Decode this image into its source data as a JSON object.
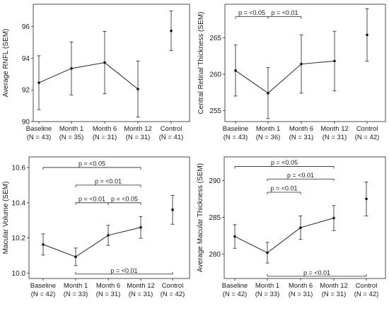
{
  "chart_data": [
    {
      "id": "rnfl",
      "type": "line",
      "ylabel": "Average RNFL (SEM)",
      "ylim": [
        90,
        97.4
      ],
      "yticks": [
        90,
        92,
        94,
        96
      ],
      "categories": [
        {
          "name": "Baseline",
          "n": "(N = 43)"
        },
        {
          "name": "Month 1",
          "n": "(N = 35)"
        },
        {
          "name": "Month 6",
          "n": "(N = 31)"
        },
        {
          "name": "Month 12",
          "n": "(N = 31)"
        },
        {
          "name": "Control",
          "n": "(N = 41)"
        }
      ],
      "values": [
        92.45,
        93.35,
        93.72,
        92.05,
        95.72
      ],
      "sem": [
        1.7,
        1.67,
        1.97,
        1.77,
        1.25
      ],
      "connect": [
        0,
        1,
        2,
        3
      ],
      "significance": [],
      "grid": false
    },
    {
      "id": "central-thickness",
      "type": "line",
      "ylabel": "Central Retinal Thickness (SEM)",
      "ylim": [
        253.5,
        269.6
      ],
      "yticks": [
        255,
        260,
        265
      ],
      "categories": [
        {
          "name": "Baseline",
          "n": "(N = 43)"
        },
        {
          "name": "Month 1",
          "n": "(N = 36)"
        },
        {
          "name": "Month 6",
          "n": "(N = 31)"
        },
        {
          "name": "Month 12",
          "n": "(N = 31)"
        },
        {
          "name": "Control",
          "n": "(N = 42)"
        }
      ],
      "values": [
        260.5,
        257.4,
        261.4,
        261.8,
        265.4
      ],
      "sem": [
        3.5,
        3.5,
        4.0,
        4.1,
        3.6
      ],
      "connect": [
        0,
        1,
        2,
        3
      ],
      "significance": [
        {
          "from": 0,
          "to": 1,
          "label": "p = <0.05",
          "y": 267.9,
          "position": "above"
        },
        {
          "from": 1,
          "to": 2,
          "label": "p = <0.01",
          "y": 267.9,
          "position": "above"
        }
      ],
      "grid": false
    },
    {
      "id": "macular-volume",
      "type": "line",
      "ylabel": "Macular Volume (SEM)",
      "ylim": [
        9.97,
        10.66
      ],
      "yticks": [
        10.0,
        10.2,
        10.4,
        10.6
      ],
      "ytick_labels": [
        "10.0",
        "10.2",
        "10.4",
        "10.6"
      ],
      "categories": [
        {
          "name": "Baseline",
          "n": "(N = 42)"
        },
        {
          "name": "Month 1",
          "n": "(N = 33)"
        },
        {
          "name": "Month 6",
          "n": "(N = 31)"
        },
        {
          "name": "Month 12",
          "n": "(N = 31)"
        },
        {
          "name": "Control",
          "n": "(N = 42)"
        }
      ],
      "values": [
        10.163,
        10.093,
        10.215,
        10.26,
        10.36
      ],
      "sem": [
        0.06,
        0.05,
        0.057,
        0.062,
        0.082
      ],
      "connect": [
        0,
        1,
        2,
        3
      ],
      "significance": [
        {
          "from": 0,
          "to": 3,
          "label": "p = <0.05",
          "y": 10.6,
          "position": "above"
        },
        {
          "from": 1,
          "to": 3,
          "label": "p = <0.01",
          "y": 10.5,
          "position": "above"
        },
        {
          "from": 1,
          "to": 2,
          "label": "p = <0.01",
          "y": 10.4,
          "position": "above"
        },
        {
          "from": 2,
          "to": 3,
          "label": "p = <0.05",
          "y": 10.4,
          "position": "above"
        },
        {
          "from": 1,
          "to": 4,
          "label": "p = <0.01",
          "y": 9.995,
          "position": "below"
        }
      ],
      "grid": false
    },
    {
      "id": "macular-thickness",
      "type": "line",
      "ylabel": "Average Macular Thickness (SEM)",
      "ylim": [
        276.7,
        293.2
      ],
      "yticks": [
        280,
        285,
        290
      ],
      "categories": [
        {
          "name": "Baseline",
          "n": "(N = 42)"
        },
        {
          "name": "Month 1",
          "n": "(N = 33)"
        },
        {
          "name": "Month 6",
          "n": "(N = 31)"
        },
        {
          "name": "Month 12",
          "n": "(N = 31)"
        },
        {
          "name": "Control",
          "n": "(N = 42)"
        }
      ],
      "values": [
        282.4,
        280.2,
        283.6,
        284.9,
        287.5
      ],
      "sem": [
        1.6,
        1.4,
        1.6,
        1.7,
        2.3
      ],
      "connect": [
        0,
        1,
        2,
        3
      ],
      "significance": [
        {
          "from": 0,
          "to": 3,
          "label": "p = <0.05",
          "y": 291.9,
          "position": "above"
        },
        {
          "from": 1,
          "to": 3,
          "label": "p = <0.01",
          "y": 290.2,
          "position": "above"
        },
        {
          "from": 1,
          "to": 2,
          "label": "p = <0.01",
          "y": 288.4,
          "position": "above"
        },
        {
          "from": 1,
          "to": 4,
          "label": "p = <0.01",
          "y": 277.0,
          "position": "below"
        }
      ],
      "grid": false
    }
  ]
}
